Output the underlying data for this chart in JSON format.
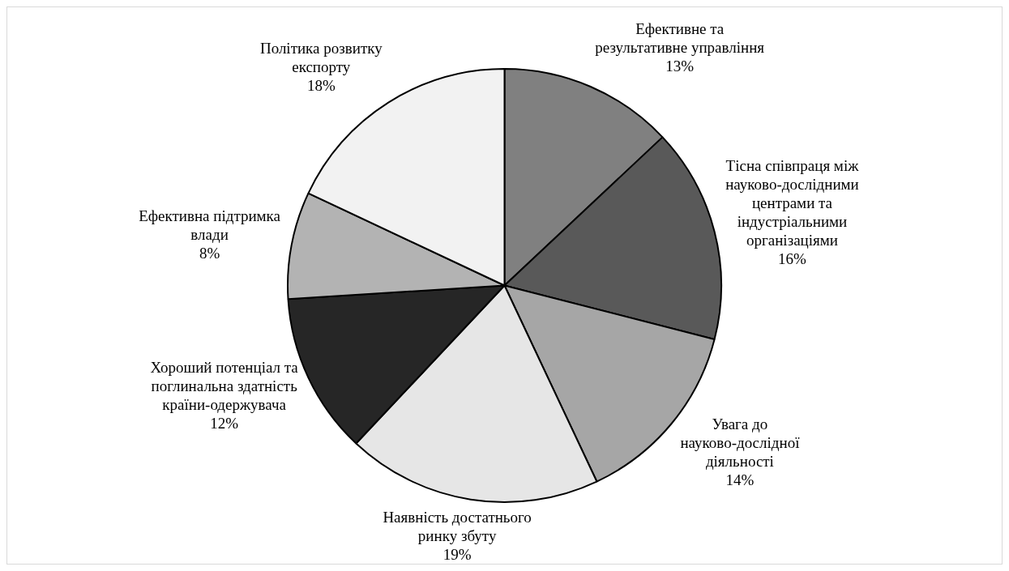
{
  "chart_data": {
    "type": "pie",
    "categories": [
      "Ефективне та результативне управління",
      "Тісна співпраця між науково-дослідними центрами та індустріальними організаціями",
      "Увага до науково-дослідної діяльності",
      "Наявність достатнього ринку збуту",
      "Хороший потенціал та поглинальна здатність країни-одержувача",
      "Ефективна підтримка влади",
      "Політика розвитку експорту"
    ],
    "values": [
      13,
      16,
      14,
      19,
      12,
      8,
      18
    ],
    "value_labels": [
      "13%",
      "16%",
      "14%",
      "19%",
      "12%",
      "8%",
      "18%"
    ],
    "colors": [
      "#808080",
      "#595959",
      "#a6a6a6",
      "#e6e6e6",
      "#262626",
      "#b3b3b3",
      "#f2f2f2"
    ],
    "legend": false
  }
}
